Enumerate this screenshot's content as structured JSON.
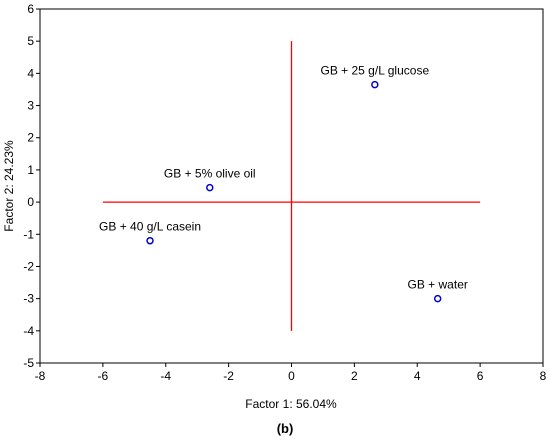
{
  "chart_data": {
    "type": "scatter",
    "xlabel": "Factor 1: 56.04%",
    "ylabel": "Factor 2: 24.23%",
    "xlim": [
      -8,
      8
    ],
    "ylim": [
      -5,
      6
    ],
    "x_ticks": [
      -8,
      -6,
      -4,
      -2,
      0,
      2,
      4,
      6,
      8
    ],
    "y_ticks": [
      -5,
      -4,
      -3,
      -2,
      -1,
      0,
      1,
      2,
      3,
      4,
      5,
      6
    ],
    "grid": false,
    "points": [
      {
        "label": "GB + 25 g/L glucose",
        "x": 2.65,
        "y": 3.65
      },
      {
        "label": "GB + 5% olive oil",
        "x": -2.6,
        "y": 0.45
      },
      {
        "label": "GB + 40 g/L casein",
        "x": -4.5,
        "y": -1.2
      },
      {
        "label": "GB + water",
        "x": 4.65,
        "y": -3.0
      }
    ],
    "reference_lines": [
      {
        "orientation": "horizontal",
        "y": 0,
        "x_from": -6,
        "x_to": 6,
        "color": "#ff0000"
      },
      {
        "orientation": "vertical",
        "x": 0,
        "y_from": -4,
        "y_to": 5,
        "color": "#ff0000"
      }
    ],
    "marker_color": "#0000cc"
  },
  "panel_label": "(b)"
}
